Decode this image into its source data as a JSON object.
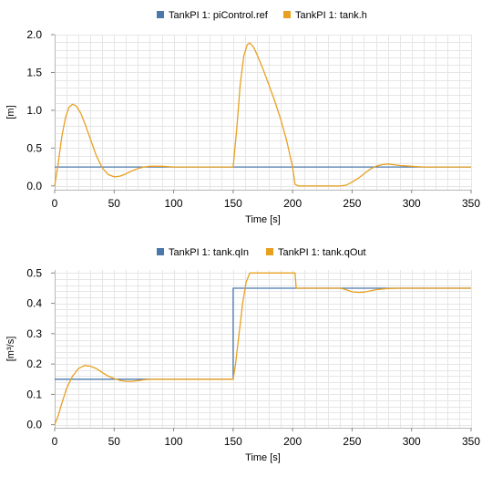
{
  "colors": {
    "blue": "#4a78ab",
    "orange": "#e8a020",
    "grid": "#e6e6e6",
    "axis": "#b8b8b8"
  },
  "chart_data": [
    {
      "type": "line",
      "ylabel": "[m]",
      "xlabel": "Time [s]",
      "xlim": [
        0,
        350
      ],
      "ylim": [
        -0.05,
        2.0
      ],
      "xticks": [
        0,
        50,
        100,
        150,
        200,
        250,
        300,
        350
      ],
      "yticks": [
        0.0,
        0.5,
        1.0,
        1.5,
        2.0
      ],
      "ytick_labels": [
        "0.0",
        "0.5",
        "1.0",
        "1.5",
        "2.0"
      ],
      "grid": true,
      "legend_position": "top",
      "series": [
        {
          "name": "TankPI 1: piControl.ref",
          "color": "#4a78ab",
          "points": [
            [
              0,
              0.25
            ],
            [
              350,
              0.25
            ]
          ]
        },
        {
          "name": "TankPI 1: tank.h",
          "color": "#e8a020",
          "points": [
            [
              0,
              0
            ],
            [
              3,
              0.3
            ],
            [
              6,
              0.65
            ],
            [
              9,
              0.9
            ],
            [
              12,
              1.04
            ],
            [
              15,
              1.08
            ],
            [
              18,
              1.06
            ],
            [
              22,
              0.96
            ],
            [
              26,
              0.8
            ],
            [
              30,
              0.62
            ],
            [
              35,
              0.4
            ],
            [
              40,
              0.24
            ],
            [
              45,
              0.15
            ],
            [
              50,
              0.12
            ],
            [
              55,
              0.13
            ],
            [
              60,
              0.16
            ],
            [
              65,
              0.2
            ],
            [
              70,
              0.23
            ],
            [
              75,
              0.25
            ],
            [
              80,
              0.26
            ],
            [
              90,
              0.26
            ],
            [
              100,
              0.25
            ],
            [
              120,
              0.25
            ],
            [
              150,
              0.25
            ],
            [
              153,
              0.75
            ],
            [
              156,
              1.35
            ],
            [
              159,
              1.72
            ],
            [
              162,
              1.87
            ],
            [
              164,
              1.89
            ],
            [
              167,
              1.84
            ],
            [
              170,
              1.74
            ],
            [
              175,
              1.55
            ],
            [
              180,
              1.34
            ],
            [
              185,
              1.12
            ],
            [
              190,
              0.88
            ],
            [
              195,
              0.6
            ],
            [
              200,
              0.25
            ],
            [
              202,
              0.02
            ],
            [
              205,
              0
            ],
            [
              240,
              0
            ],
            [
              245,
              0.01
            ],
            [
              250,
              0.05
            ],
            [
              255,
              0.1
            ],
            [
              260,
              0.16
            ],
            [
              265,
              0.22
            ],
            [
              270,
              0.26
            ],
            [
              275,
              0.28
            ],
            [
              280,
              0.29
            ],
            [
              285,
              0.28
            ],
            [
              290,
              0.27
            ],
            [
              300,
              0.26
            ],
            [
              310,
              0.25
            ],
            [
              350,
              0.25
            ]
          ]
        }
      ]
    },
    {
      "type": "line",
      "ylabel": "[m³/s]",
      "xlabel": "Time [s]",
      "xlim": [
        0,
        350
      ],
      "ylim": [
        -0.01,
        0.51
      ],
      "xticks": [
        0,
        50,
        100,
        150,
        200,
        250,
        300,
        350
      ],
      "yticks": [
        0.0,
        0.1,
        0.2,
        0.3,
        0.4,
        0.5
      ],
      "ytick_labels": [
        "0.0",
        "0.1",
        "0.2",
        "0.3",
        "0.4",
        "0.5"
      ],
      "grid": true,
      "legend_position": "top",
      "series": [
        {
          "name": "TankPI 1: tank.qIn",
          "color": "#4a78ab",
          "points": [
            [
              0,
              0.15
            ],
            [
              150,
              0.15
            ],
            [
              150,
              0.45
            ],
            [
              350,
              0.45
            ]
          ]
        },
        {
          "name": "TankPI 1: tank.qOut",
          "color": "#e8a020",
          "points": [
            [
              0,
              0
            ],
            [
              3,
              0.03
            ],
            [
              6,
              0.07
            ],
            [
              10,
              0.12
            ],
            [
              15,
              0.16
            ],
            [
              20,
              0.185
            ],
            [
              25,
              0.195
            ],
            [
              30,
              0.193
            ],
            [
              35,
              0.185
            ],
            [
              40,
              0.172
            ],
            [
              45,
              0.16
            ],
            [
              50,
              0.152
            ],
            [
              55,
              0.146
            ],
            [
              60,
              0.143
            ],
            [
              65,
              0.143
            ],
            [
              70,
              0.145
            ],
            [
              75,
              0.148
            ],
            [
              80,
              0.15
            ],
            [
              90,
              0.15
            ],
            [
              150,
              0.15
            ],
            [
              152,
              0.2
            ],
            [
              155,
              0.3
            ],
            [
              158,
              0.4
            ],
            [
              161,
              0.47
            ],
            [
              164,
              0.5
            ],
            [
              202,
              0.5
            ],
            [
              203,
              0.45
            ],
            [
              240,
              0.45
            ],
            [
              245,
              0.445
            ],
            [
              250,
              0.438
            ],
            [
              255,
              0.436
            ],
            [
              260,
              0.437
            ],
            [
              265,
              0.441
            ],
            [
              270,
              0.445
            ],
            [
              280,
              0.449
            ],
            [
              290,
              0.45
            ],
            [
              350,
              0.45
            ]
          ]
        }
      ]
    }
  ]
}
